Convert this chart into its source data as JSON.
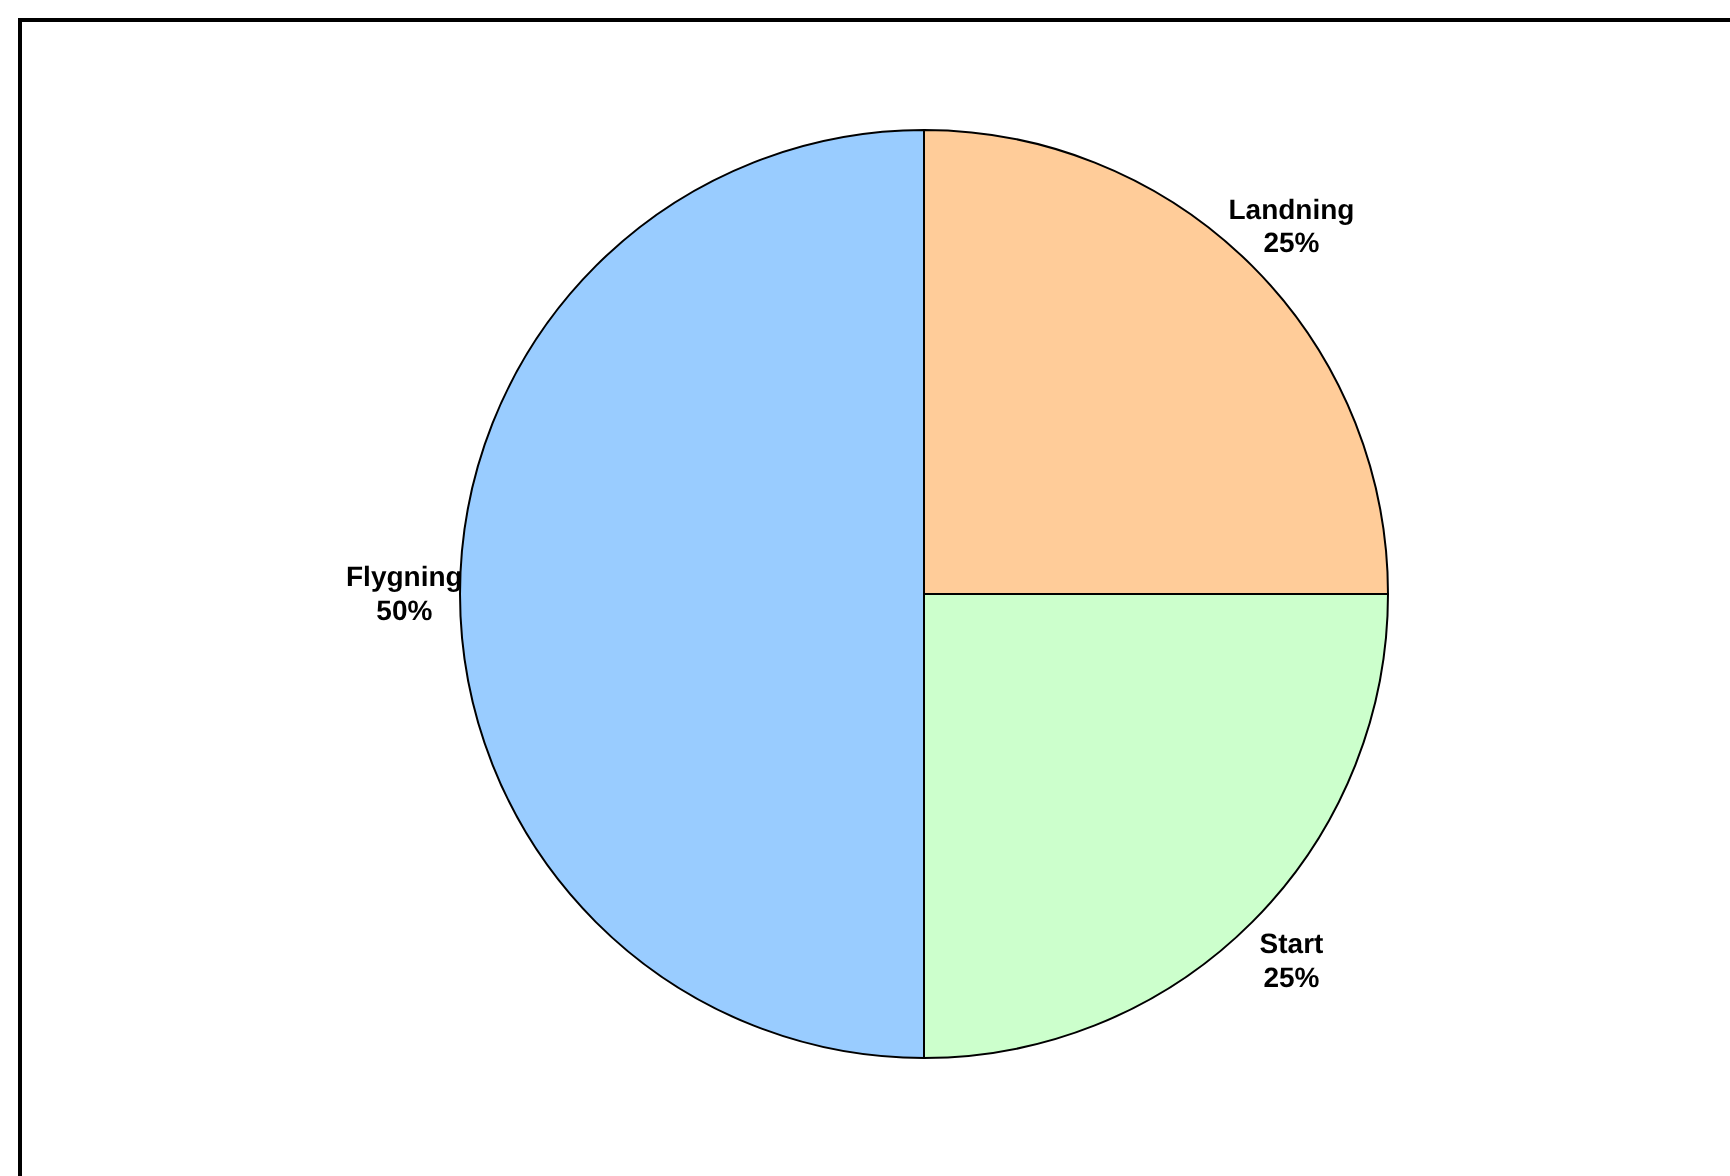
{
  "chart_data": {
    "type": "pie",
    "categories": [
      "Landning",
      "Start",
      "Flygning"
    ],
    "values": [
      25,
      25,
      50
    ],
    "value_labels": [
      "25%",
      "25%",
      "50%"
    ],
    "colors": [
      "#ffcc99",
      "#ccffcc",
      "#99ccff"
    ]
  }
}
